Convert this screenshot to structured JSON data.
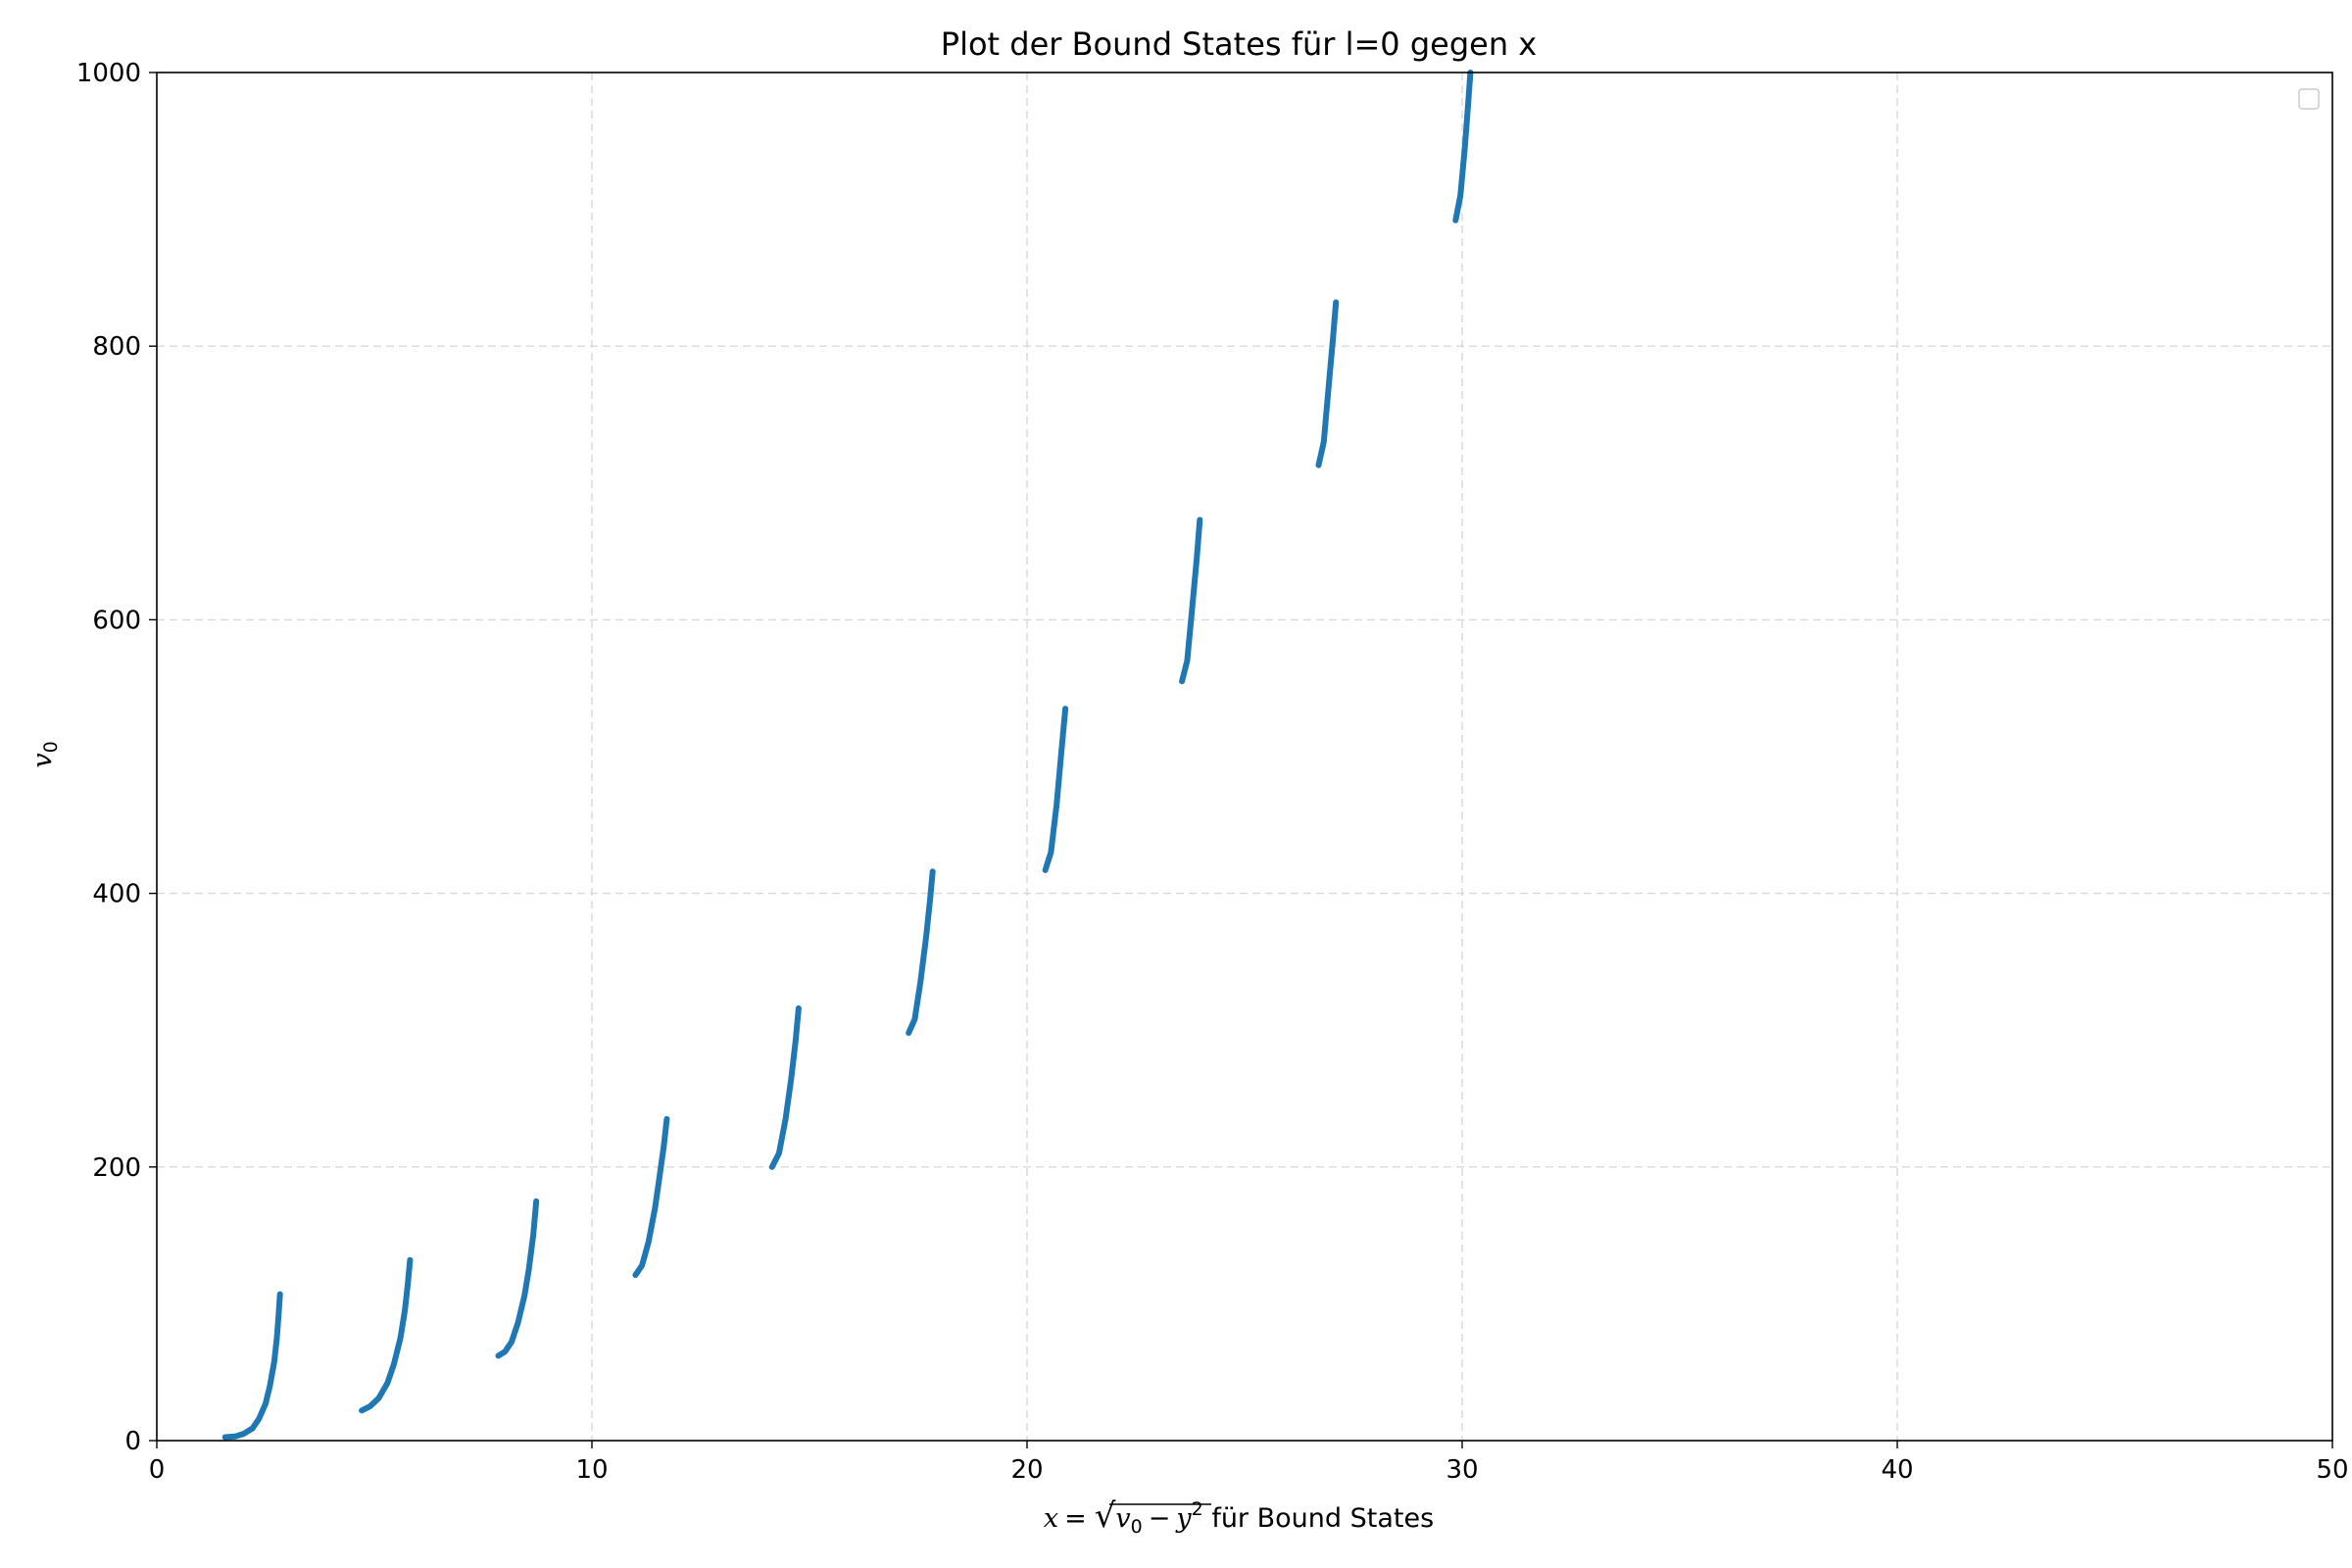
{
  "chart_data": {
    "type": "line",
    "title": "Plot der Bound States für l=0 gegen x",
    "xlabel": {
      "var": "x",
      "eq": "=",
      "sqrt_body": "v",
      "sqrt_sub": "0",
      "minus": "−",
      "y_var": "y",
      "y_exp": "2",
      "suffix": " für Bound States"
    },
    "ylabel": {
      "var": "v",
      "sub": "0"
    },
    "xlim": [
      0,
      50
    ],
    "ylim": [
      0,
      1000
    ],
    "xticks": [
      "0",
      "10",
      "20",
      "30",
      "40",
      "50"
    ],
    "yticks": [
      "0",
      "200",
      "400",
      "600",
      "800",
      "1000"
    ],
    "xtick_values": [
      0,
      10,
      20,
      30,
      40,
      50
    ],
    "ytick_values": [
      0,
      200,
      400,
      600,
      800,
      1000
    ],
    "grid": true,
    "legend": {
      "position": "top-right",
      "entries": []
    },
    "series_color": "#1f77b4",
    "series": [
      {
        "x": [
          1.57,
          1.8,
          2.0,
          2.2,
          2.35,
          2.5,
          2.6,
          2.7,
          2.76,
          2.8,
          2.83
        ],
        "y": [
          2.5,
          3,
          5,
          9,
          16,
          27,
          40,
          58,
          75,
          92,
          107
        ]
      },
      {
        "x": [
          4.71,
          4.9,
          5.1,
          5.3,
          5.45,
          5.6,
          5.7,
          5.77,
          5.82
        ],
        "y": [
          22,
          25,
          31,
          42,
          56,
          75,
          95,
          115,
          132
        ]
      },
      {
        "x": [
          7.85,
          8.0,
          8.15,
          8.3,
          8.45,
          8.55,
          8.65,
          8.72
        ],
        "y": [
          62,
          65,
          72,
          86,
          106,
          125,
          150,
          175
        ]
      },
      {
        "x": [
          11.0,
          11.15,
          11.3,
          11.45,
          11.55,
          11.65,
          11.72
        ],
        "y": [
          121,
          128,
          145,
          170,
          192,
          215,
          235
        ]
      },
      {
        "x": [
          14.14,
          14.3,
          14.45,
          14.58,
          14.68,
          14.75
        ],
        "y": [
          200,
          210,
          235,
          265,
          292,
          316
        ]
      },
      {
        "x": [
          17.28,
          17.42,
          17.55,
          17.68,
          17.77,
          17.83
        ],
        "y": [
          298,
          308,
          335,
          368,
          395,
          416
        ]
      },
      {
        "x": [
          20.42,
          20.55,
          20.68,
          20.78,
          20.88
        ],
        "y": [
          417,
          430,
          465,
          500,
          535
        ]
      },
      {
        "x": [
          23.56,
          23.68,
          23.8,
          23.9,
          23.97
        ],
        "y": [
          555,
          570,
          610,
          645,
          673
        ]
      },
      {
        "x": [
          26.7,
          26.82,
          26.93,
          27.03,
          27.1
        ],
        "y": [
          713,
          730,
          770,
          805,
          832
        ]
      },
      {
        "x": [
          29.85,
          29.96,
          30.06,
          30.14,
          30.19
        ],
        "y": [
          892,
          910,
          945,
          978,
          1000
        ]
      }
    ]
  }
}
